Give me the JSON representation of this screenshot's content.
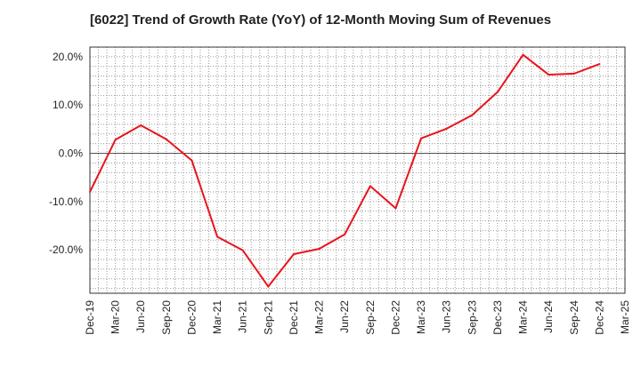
{
  "chart_data": {
    "type": "line",
    "title": "[6022]  Trend of Growth Rate (YoY) of 12-Month Moving Sum of Revenues",
    "xlabel": "",
    "ylabel": "",
    "y_unit": "%",
    "ylim": [
      -29,
      22
    ],
    "yticks": [
      20,
      10,
      0,
      -10,
      -20
    ],
    "ytick_labels": [
      "20.0%",
      "10.0%",
      "0.0%",
      "-10.0%",
      "-20.0%"
    ],
    "x_tick_labels": [
      "Dec-19",
      "Mar-20",
      "Jun-20",
      "Sep-20",
      "Dec-20",
      "Mar-21",
      "Jun-21",
      "Sep-21",
      "Dec-21",
      "Mar-22",
      "Jun-22",
      "Sep-22",
      "Dec-22",
      "Mar-23",
      "Jun-23",
      "Sep-23",
      "Dec-23",
      "Mar-24",
      "Jun-24",
      "Sep-24",
      "Dec-24",
      "Mar-25"
    ],
    "grid": true,
    "line_color": "#e8141c",
    "series": [
      {
        "name": "",
        "x": [
          "Dec-19",
          "Mar-20",
          "Jun-20",
          "Sep-20",
          "Dec-20",
          "Mar-21",
          "Jun-21",
          "Sep-21",
          "Dec-21",
          "Mar-22",
          "Jun-22",
          "Sep-22",
          "Dec-22",
          "Mar-23",
          "Jun-23",
          "Sep-23",
          "Dec-23",
          "Mar-24",
          "Jun-24",
          "Sep-24",
          "Dec-24"
        ],
        "values": [
          -8.0,
          2.8,
          5.8,
          2.9,
          -1.5,
          -17.3,
          -20.1,
          -27.6,
          -20.9,
          -19.8,
          -16.8,
          -6.8,
          -11.4,
          3.1,
          5.1,
          7.9,
          12.7,
          20.4,
          16.3,
          16.5,
          18.5
        ]
      }
    ]
  }
}
